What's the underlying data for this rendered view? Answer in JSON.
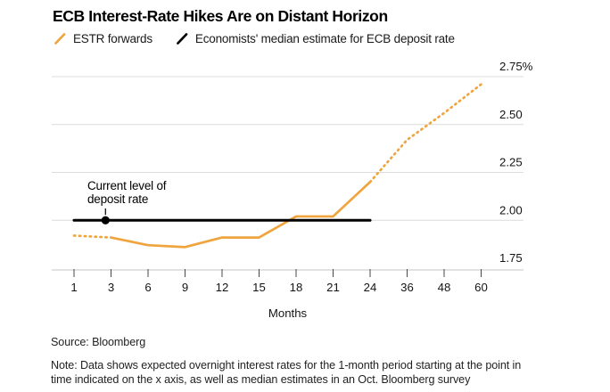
{
  "header": {
    "title": "ECB Interest-Rate Hikes Are on Distant Horizon"
  },
  "legend": [
    {
      "label": "ESTR forwards",
      "color": "#EFA43E",
      "marker": "slash-icon"
    },
    {
      "label": "Economists' median estimate for ECB deposit rate",
      "color": "#000000",
      "marker": "slash-icon"
    }
  ],
  "chart_data": {
    "type": "line",
    "title": "ECB Interest-Rate Hikes Are on Distant Horizon",
    "xlabel": "Months",
    "ylabel": "",
    "categories": [
      1,
      3,
      6,
      9,
      12,
      15,
      18,
      21,
      24,
      36,
      48,
      60
    ],
    "x_tick_labels": [
      "1",
      "3",
      "6",
      "9",
      "12",
      "15",
      "18",
      "21",
      "24",
      "36",
      "48",
      "60"
    ],
    "y_axis": {
      "min": 1.75,
      "max": 2.75,
      "ticks": [
        1.75,
        2.0,
        2.25,
        2.5,
        2.75
      ],
      "tick_labels": [
        "1.75",
        "2.00",
        "2.25",
        "2.50",
        "2.75%"
      ],
      "side": "right"
    },
    "grid": "horizontal",
    "legend_position": "top-left",
    "series": [
      {
        "name": "ESTR forwards",
        "color": "#EFA43E",
        "values": [
          1.92,
          1.91,
          1.87,
          1.86,
          1.91,
          1.91,
          2.02,
          2.02,
          2.2,
          2.42,
          2.56,
          2.71
        ],
        "segments": [
          {
            "style": "dotted",
            "from": 0,
            "to": 1
          },
          {
            "style": "solid",
            "from": 1,
            "to": 8
          },
          {
            "style": "dotted",
            "from": 8,
            "to": 11
          }
        ]
      },
      {
        "name": "Economists' median estimate for ECB deposit rate",
        "color": "#000000",
        "values": [
          2.0,
          2.0,
          2.0,
          2.0,
          2.0,
          2.0,
          2.0,
          2.0,
          2.0,
          null,
          null,
          null
        ],
        "segments": [
          {
            "style": "solid",
            "from": 0,
            "to": 8
          }
        ]
      }
    ],
    "annotation": {
      "line1": "Current level of",
      "line2": "deposit rate",
      "dot_month": 2.7,
      "dot_value": 2.0
    }
  },
  "footer": {
    "source": "Source: Bloomberg",
    "note_line1": "Note: Data shows expected overnight interest rates for the 1-month period starting at the point in",
    "note_line2": "time indicated on the x axis, as well as median estimates in an Oct. Bloomberg survey"
  }
}
